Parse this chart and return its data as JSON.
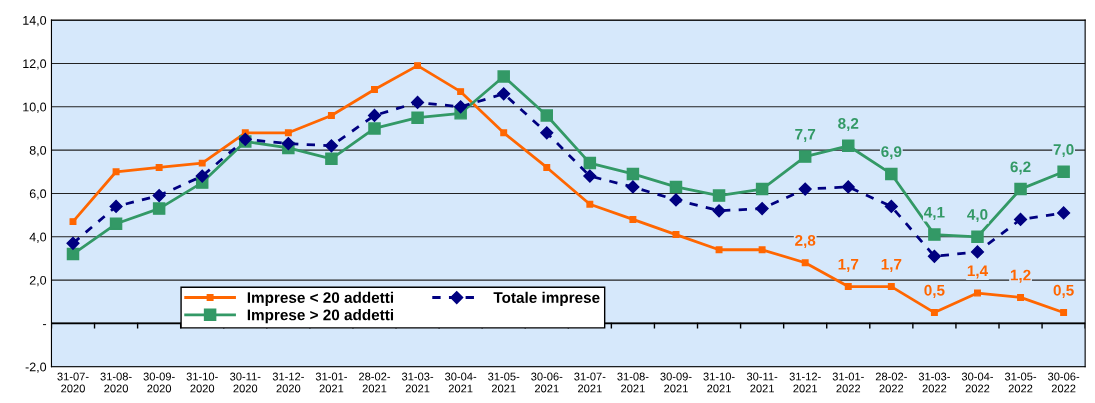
{
  "chart_data": {
    "type": "line",
    "categories": [
      "31-07-\n2020",
      "31-08-\n2020",
      "30-09-\n2020",
      "31-10-\n2020",
      "30-11-\n2020",
      "31-12-\n2020",
      "31-01-\n2021",
      "28-02-\n2021",
      "31-03-\n2021",
      "30-04-\n2021",
      "31-05-\n2021",
      "30-06-\n2021",
      "31-07-\n2021",
      "31-08-\n2021",
      "30-09-\n2021",
      "31-10-\n2021",
      "30-11-\n2021",
      "31-12-\n2021",
      "31-01-\n2022",
      "28-02-\n2022",
      "31-03-\n2022",
      "30-04-\n2022",
      "31-05-\n2022",
      "30-06-\n2022"
    ],
    "series": [
      {
        "name": "Imprese < 20 addetti",
        "color": "#ff6600",
        "marker": "square",
        "line_style": "solid",
        "values": [
          4.7,
          7.0,
          7.2,
          7.4,
          8.8,
          8.8,
          9.6,
          10.8,
          11.9,
          10.7,
          8.8,
          7.2,
          5.5,
          4.8,
          4.1,
          3.4,
          3.4,
          2.8,
          1.7,
          1.7,
          0.5,
          1.4,
          1.2,
          0.5
        ],
        "value_labels": [
          null,
          null,
          null,
          null,
          null,
          null,
          null,
          null,
          null,
          null,
          null,
          null,
          null,
          null,
          null,
          null,
          null,
          "2,8",
          "1,7",
          "1,7",
          "0,5",
          "1,4",
          "1,2",
          "0,5"
        ]
      },
      {
        "name": "Imprese > 20 addetti",
        "color": "#339966",
        "marker": "square",
        "line_style": "solid",
        "values": [
          3.2,
          4.6,
          5.3,
          6.5,
          8.4,
          8.1,
          7.6,
          9.0,
          9.5,
          9.7,
          11.4,
          9.6,
          7.4,
          6.9,
          6.3,
          5.9,
          6.2,
          7.7,
          8.2,
          6.9,
          4.1,
          4.0,
          6.2,
          7.0
        ],
        "value_labels": [
          null,
          null,
          null,
          null,
          null,
          null,
          null,
          null,
          null,
          null,
          null,
          null,
          null,
          null,
          null,
          null,
          null,
          "7,7",
          "8,2",
          "6,9",
          "4,1",
          "4,0",
          "6,2",
          "7,0"
        ]
      },
      {
        "name": "Totale imprese",
        "color": "#000080",
        "marker": "diamond",
        "line_style": "dashed",
        "values": [
          3.7,
          5.4,
          5.9,
          6.8,
          8.5,
          8.3,
          8.2,
          9.6,
          10.2,
          10.0,
          10.6,
          8.8,
          6.8,
          6.3,
          5.7,
          5.2,
          5.3,
          6.2,
          6.3,
          5.4,
          3.1,
          3.3,
          4.8,
          5.1
        ]
      }
    ],
    "ylim": [
      -2,
      14
    ],
    "yticks": [
      {
        "value": -2,
        "label": "-2,0"
      },
      {
        "value": 0,
        "label": "-"
      },
      {
        "value": 2,
        "label": "2,0"
      },
      {
        "value": 4,
        "label": "4,0"
      },
      {
        "value": 6,
        "label": "6,0"
      },
      {
        "value": 8,
        "label": "8,0"
      },
      {
        "value": 10,
        "label": "10,0"
      },
      {
        "value": 12,
        "label": "12,0"
      },
      {
        "value": 14,
        "label": "14,0"
      }
    ],
    "grid": "y",
    "legend": "bottom left"
  }
}
